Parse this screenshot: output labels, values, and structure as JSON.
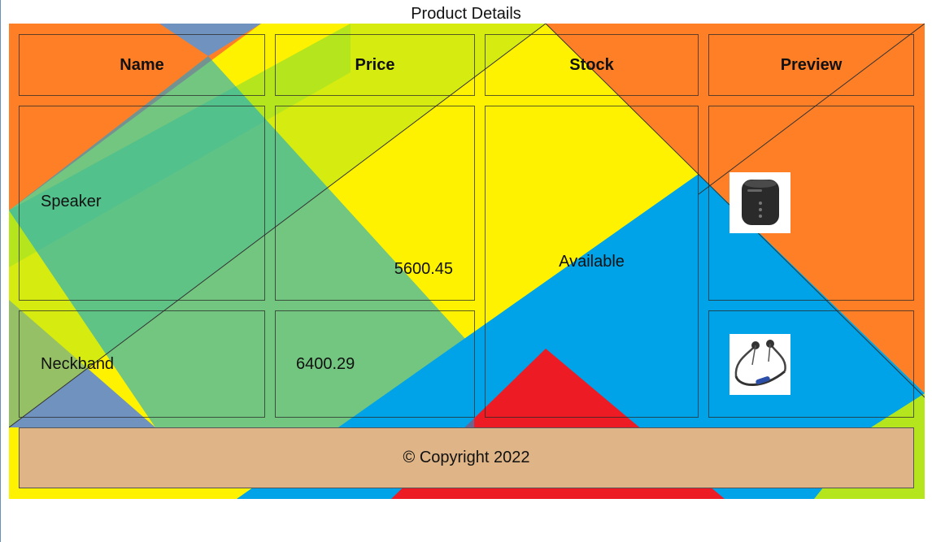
{
  "caption": "Product Details",
  "columns": [
    "Name",
    "Price",
    "Stock",
    "Preview"
  ],
  "rows": [
    {
      "name": "Speaker",
      "price": "5600.45",
      "preview_icon": "bluetooth-speaker-image"
    },
    {
      "name": "Neckband",
      "price": "6400.29",
      "preview_icon": "neckband-earphones-image"
    }
  ],
  "stock_merged": "Available",
  "footer": "© Copyright 2022",
  "colors": {
    "orange": "#ff7f27",
    "yellow": "#fff200",
    "blue": "#00a2e8",
    "red": "#ed1c24",
    "green": "#b5e61d",
    "steel": "#7092be",
    "footer_bg": "#dfb587"
  }
}
